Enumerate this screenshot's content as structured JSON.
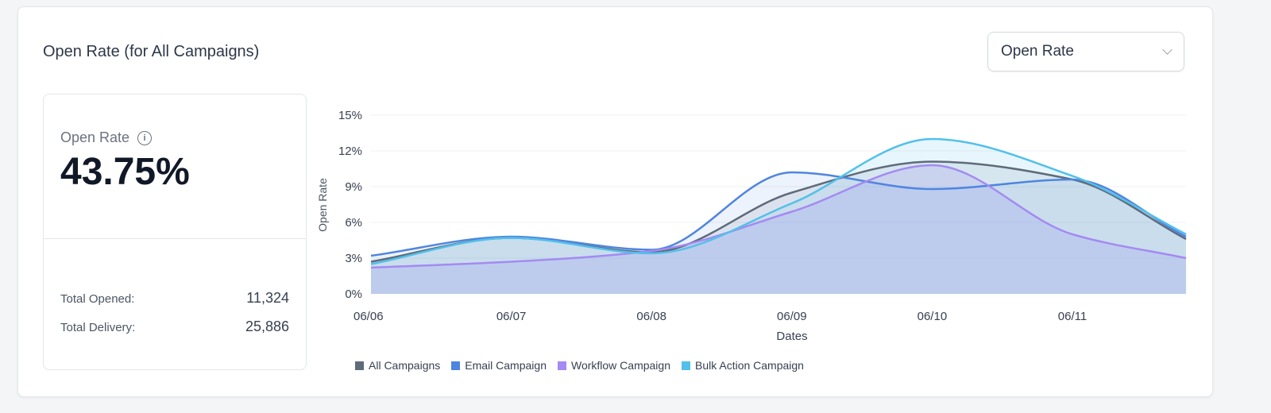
{
  "title": "Open Rate (for All Campaigns)",
  "metric_select": {
    "value": "Open Rate"
  },
  "summary": {
    "label": "Open Rate",
    "value": "43.75%",
    "rows": [
      {
        "label": "Total Opened:",
        "value": "11,324"
      },
      {
        "label": "Total Delivery:",
        "value": "25,886"
      }
    ]
  },
  "chart_data": {
    "type": "area",
    "xlabel": "Dates",
    "ylabel": "Open Rate",
    "x_ticks": [
      "06/06",
      "06/07",
      "06/08",
      "06/09",
      "06/10",
      "06/11"
    ],
    "y_ticks": [
      "0%",
      "3%",
      "6%",
      "9%",
      "12%",
      "15%"
    ],
    "ylim": [
      0,
      15
    ],
    "x": [
      0,
      1,
      2,
      3,
      4,
      5,
      5.81
    ],
    "legend_position": "bottom",
    "series": [
      {
        "name": "All Campaigns",
        "color": "#5f6b7b",
        "values": [
          2.7,
          4.7,
          3.5,
          8.5,
          11.1,
          9.6,
          4.6
        ]
      },
      {
        "name": "Email Campaign",
        "color": "#4f85e0",
        "values": [
          3.2,
          4.8,
          3.7,
          10.2,
          8.8,
          9.6,
          4.8
        ]
      },
      {
        "name": "Workflow Campaign",
        "color": "#a48af2",
        "values": [
          2.2,
          2.7,
          3.6,
          6.9,
          10.8,
          5.0,
          3.0
        ]
      },
      {
        "name": "Bulk Action Campaign",
        "color": "#52c0ea",
        "values": [
          2.5,
          4.7,
          3.4,
          7.6,
          13.0,
          9.9,
          5.0
        ]
      }
    ]
  }
}
